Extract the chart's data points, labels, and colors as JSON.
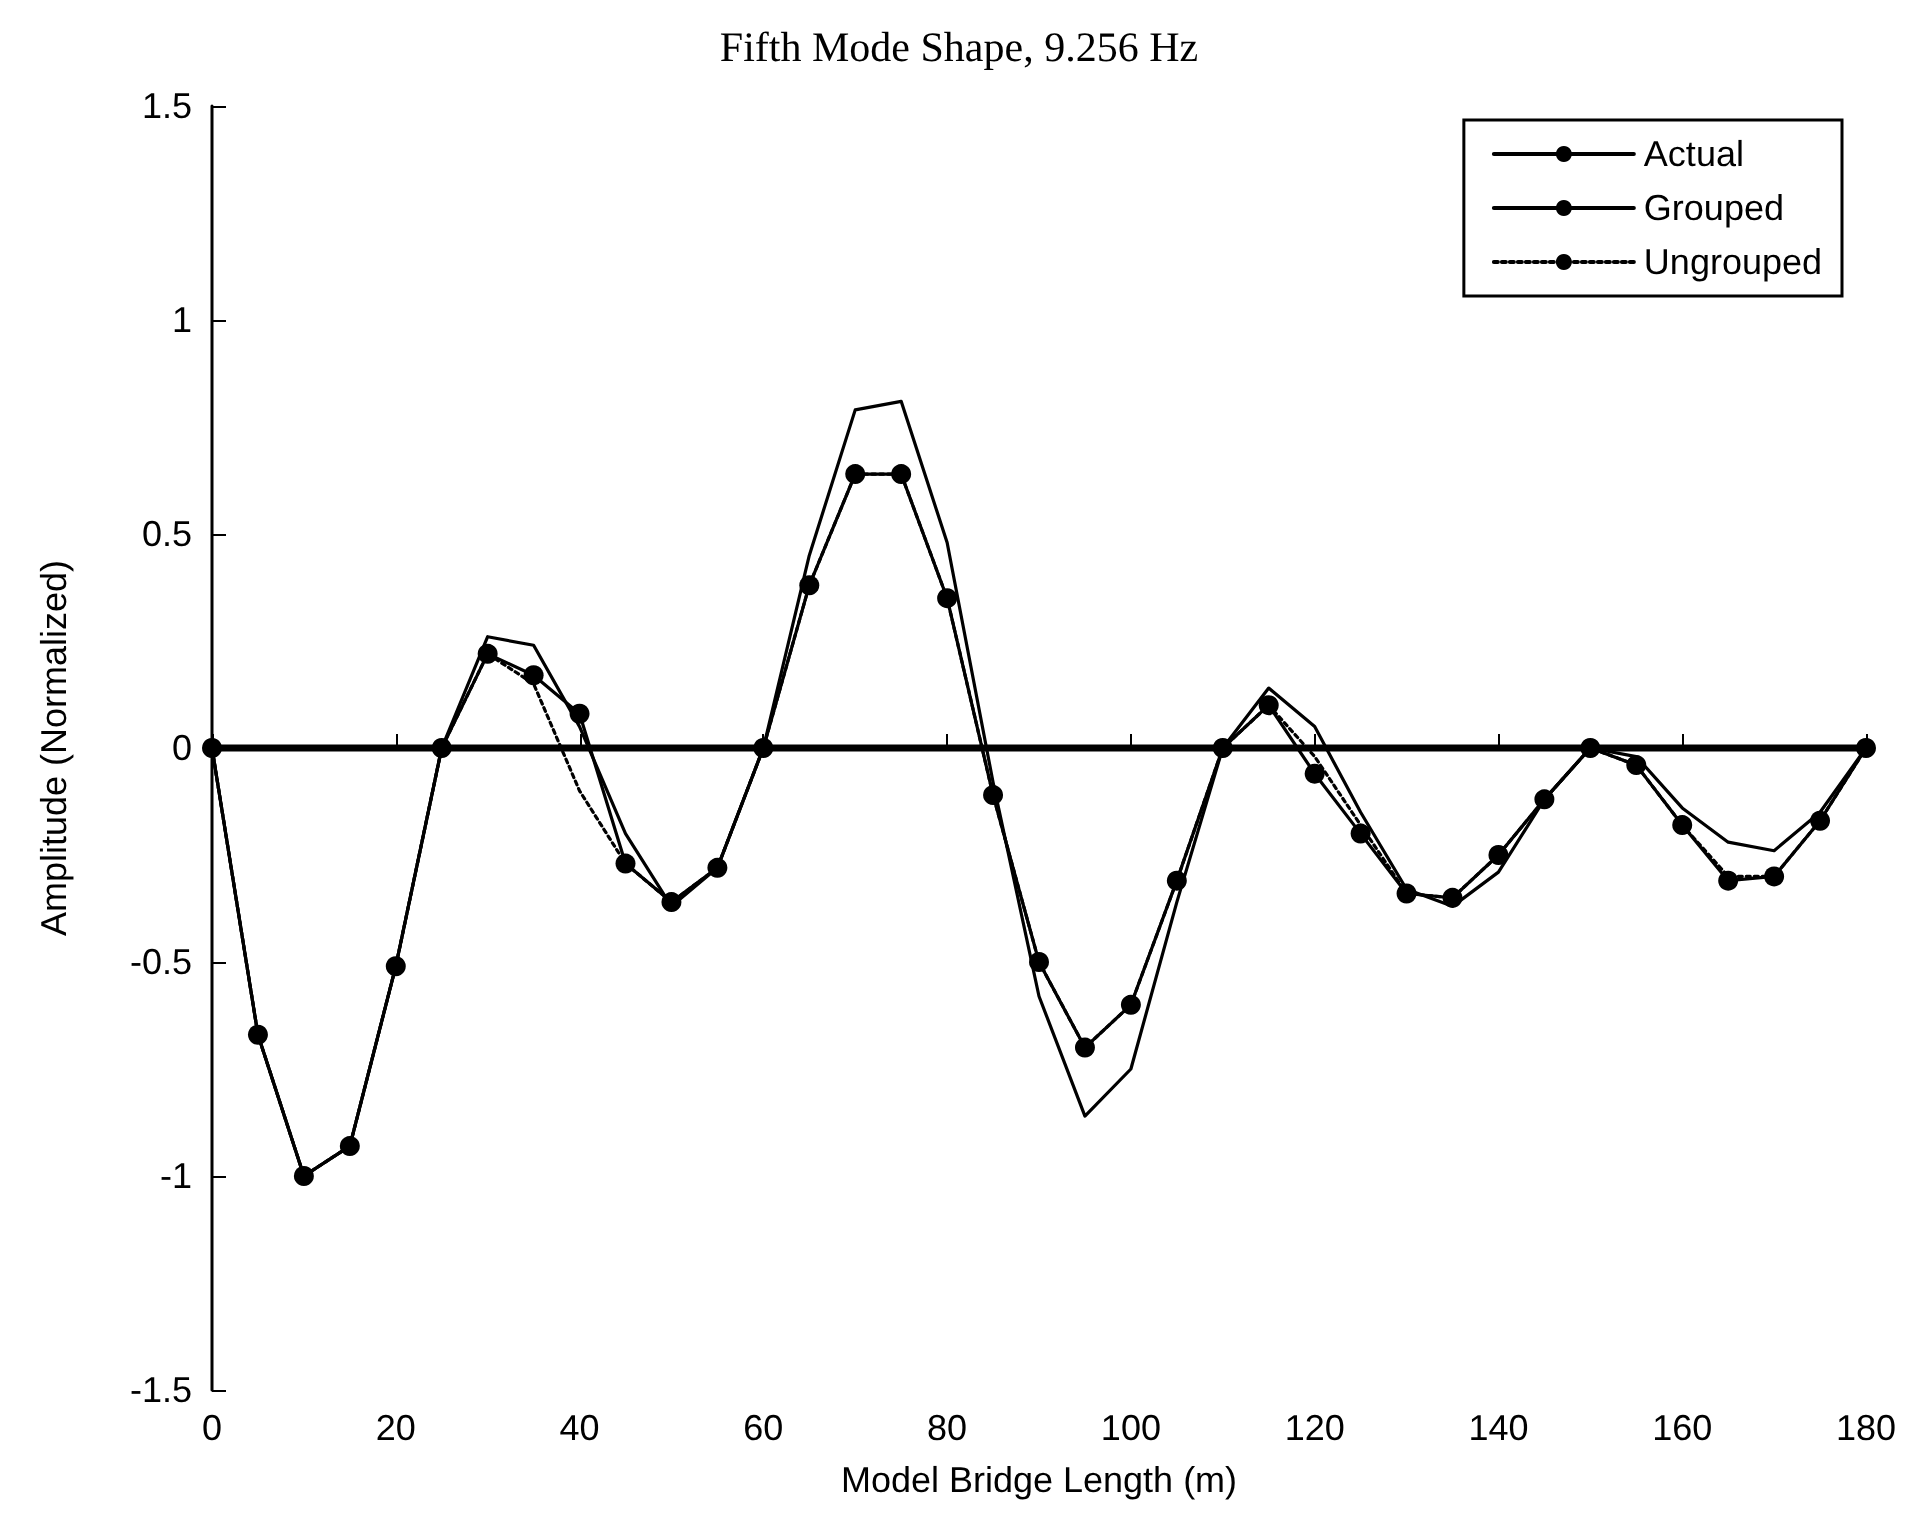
{
  "chart_data": {
    "type": "line",
    "title": "Fifth Mode Shape, 9.256 Hz",
    "xlabel": "Model Bridge Length (m)",
    "ylabel": "Amplitude (Normalized)",
    "x": [
      0,
      5,
      10,
      15,
      20,
      25,
      30,
      35,
      40,
      45,
      50,
      55,
      60,
      65,
      70,
      75,
      80,
      85,
      90,
      95,
      100,
      105,
      110,
      115,
      120,
      125,
      130,
      135,
      140,
      145,
      150,
      155,
      160,
      165,
      170,
      175,
      180
    ],
    "series": [
      {
        "name": "Actual",
        "color": "#000000",
        "marker": "none",
        "line_style": "solid",
        "values": [
          0,
          -0.67,
          -1.0,
          -0.93,
          -0.51,
          0,
          0.26,
          0.24,
          0.05,
          -0.2,
          -0.37,
          -0.28,
          0,
          0.45,
          0.79,
          0.81,
          0.48,
          -0.08,
          -0.58,
          -0.86,
          -0.75,
          -0.36,
          0,
          0.14,
          0.05,
          -0.15,
          -0.33,
          -0.37,
          -0.29,
          -0.12,
          0,
          -0.02,
          -0.14,
          -0.22,
          -0.24,
          -0.15,
          0
        ]
      },
      {
        "name": "Grouped",
        "color": "#000000",
        "marker": "circle",
        "line_style": "solid",
        "values": [
          0,
          -0.67,
          -1.0,
          -0.93,
          -0.51,
          0,
          0.22,
          0.17,
          0.08,
          -0.27,
          -0.36,
          -0.28,
          0,
          0.38,
          0.64,
          0.64,
          0.35,
          -0.11,
          -0.5,
          -0.7,
          -0.6,
          -0.31,
          0,
          0.1,
          -0.06,
          -0.2,
          -0.34,
          -0.35,
          -0.25,
          -0.12,
          0,
          -0.04,
          -0.18,
          -0.31,
          -0.3,
          -0.17,
          0
        ]
      },
      {
        "name": "Ungrouped",
        "color": "#000000",
        "marker": "none",
        "line_style": "dotted",
        "values": [
          0,
          -0.67,
          -1.0,
          -0.93,
          -0.51,
          0,
          0.22,
          0.15,
          -0.1,
          -0.27,
          -0.36,
          -0.28,
          0,
          0.38,
          0.64,
          0.64,
          0.35,
          -0.11,
          -0.5,
          -0.7,
          -0.6,
          -0.31,
          0,
          0.1,
          -0.02,
          -0.18,
          -0.34,
          -0.35,
          -0.25,
          -0.12,
          0,
          -0.04,
          -0.18,
          -0.3,
          -0.3,
          -0.17,
          0
        ]
      }
    ],
    "xlim": [
      0,
      180
    ],
    "xticks": [
      0,
      20,
      40,
      60,
      80,
      100,
      120,
      140,
      160,
      180
    ],
    "ylim": [
      -1.5,
      1.5
    ],
    "yticks": [
      -1.5,
      -1,
      -0.5,
      0,
      0.5,
      1,
      1.5
    ],
    "ref_lines": [
      {
        "axis": "y",
        "value": 0,
        "color": "#000000",
        "line_style": "solid"
      }
    ],
    "grid": false,
    "legend": "top right"
  }
}
